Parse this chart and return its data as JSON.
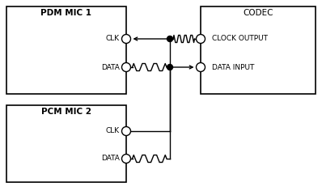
{
  "bg_color": "#ffffff",
  "line_color": "#000000",
  "box_edge_color": "#000000",
  "fig_width": 3.98,
  "fig_height": 2.31,
  "pdm_label": "PDM MIC 1",
  "pcm_label": "PCM MIC 2",
  "codec_label": "CODEC",
  "pdm_clk_label": "CLK",
  "pdm_data_label": "DATA",
  "pcm_clk_label": "CLK",
  "pcm_data_label": "DATA",
  "codec_clk_label": "CLOCK OUTPUT",
  "codec_data_label": "DATA INPUT"
}
